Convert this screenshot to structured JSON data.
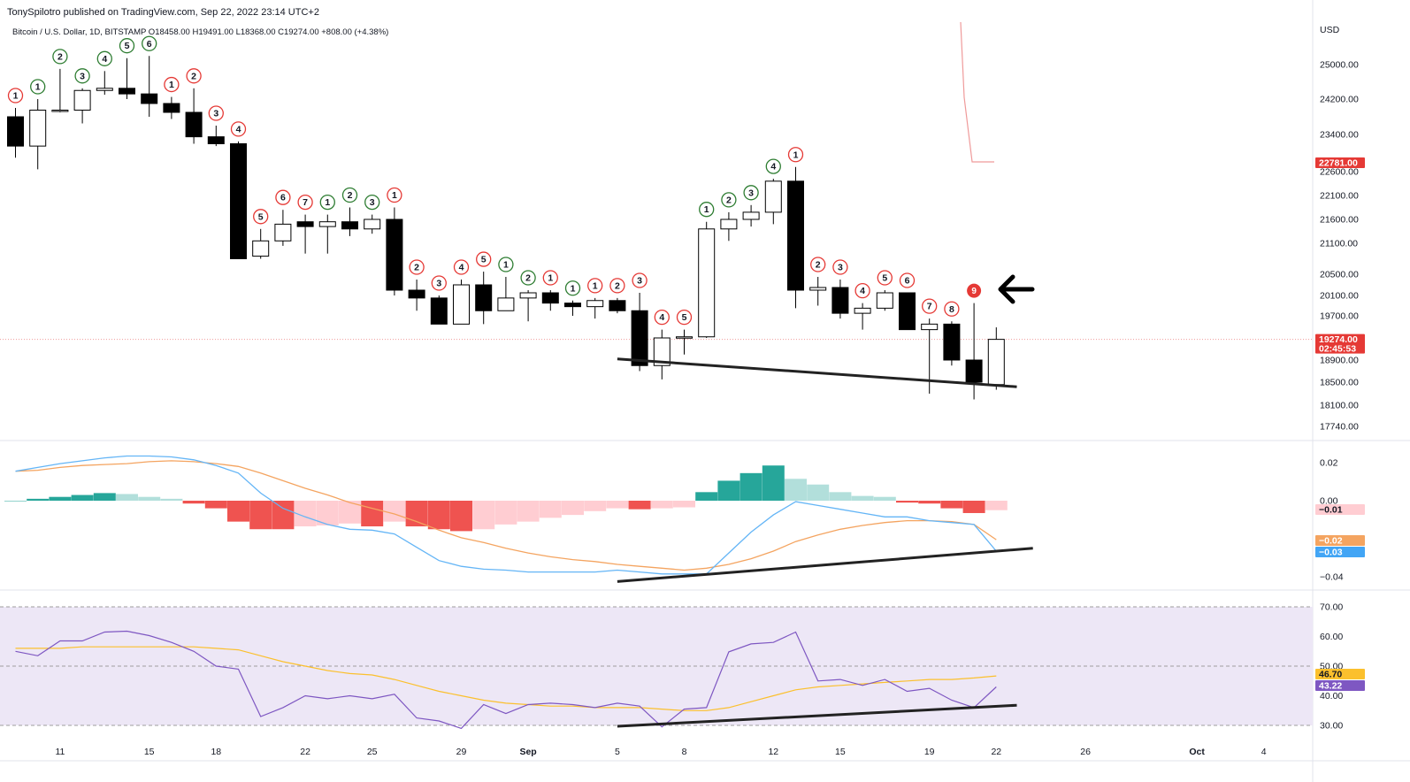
{
  "header": {
    "publisher": "TonySpilotro published on TradingView.com, Sep 22, 2022 23:14 UTC+2",
    "symbol_line": "Bitcoin / U.S. Dollar, 1D, BITSTAMP O18458.00  H19491.00  L18368.00  C19274.00  +808.00 (+4.38%)"
  },
  "colors": {
    "bull_body": "#ffffff",
    "bear_body": "#000000",
    "candle_outline": "#000000",
    "td_green": "#2e7d32",
    "td_red": "#e53935",
    "macd_line": "#64b5f6",
    "signal_line": "#f4a460",
    "hist_dark_green": "#26a69a",
    "hist_light_green": "#b2dfdb",
    "hist_dark_red": "#ef5350",
    "hist_light_red": "#ffcdd2",
    "rsi_line": "#7e57c2",
    "rsi_ma": "#fbc02d",
    "rsi_band": "#ede7f6",
    "trendline": "#222222"
  },
  "annotation": {
    "arrow": "left-arrow-icon"
  },
  "chart_data": [
    {
      "type": "candlestick",
      "title": "Bitcoin / U.S. Dollar, 1D, BITSTAMP",
      "axis_currency": "USD",
      "x_ticks": [
        "11",
        "15",
        "18",
        "22",
        "25",
        "29",
        "Sep",
        "5",
        "8",
        "12",
        "15",
        "19",
        "22",
        "26",
        "Oct",
        "4"
      ],
      "y_ticks": [
        "25000.00",
        "24200.00",
        "23400.00",
        "22600.00",
        "22100.00",
        "21600.00",
        "21100.00",
        "20500.00",
        "20100.00",
        "19700.00",
        "18900.00",
        "18500.00",
        "18100.00",
        "17740.00"
      ],
      "price_tags": [
        {
          "label": "22781.00",
          "color": "#e53935"
        },
        {
          "label": "19274.00",
          "sub": "02:45:53",
          "color": "#e53935"
        }
      ],
      "candles": [
        {
          "date": "Aug 09",
          "o": 23800,
          "h": 24000,
          "l": 22900,
          "c": 23150
        },
        {
          "date": "Aug 10",
          "o": 23150,
          "h": 24200,
          "l": 22650,
          "c": 23950
        },
        {
          "date": "Aug 11",
          "o": 23950,
          "h": 24900,
          "l": 23900,
          "c": 23950
        },
        {
          "date": "Aug 12",
          "o": 23950,
          "h": 24450,
          "l": 23650,
          "c": 24400
        },
        {
          "date": "Aug 13",
          "o": 24400,
          "h": 24850,
          "l": 24300,
          "c": 24450
        },
        {
          "date": "Aug 14",
          "o": 24450,
          "h": 25150,
          "l": 24200,
          "c": 24320
        },
        {
          "date": "Aug 15",
          "o": 24320,
          "h": 25200,
          "l": 23800,
          "c": 24100
        },
        {
          "date": "Aug 16",
          "o": 24100,
          "h": 24250,
          "l": 23750,
          "c": 23900
        },
        {
          "date": "Aug 17",
          "o": 23900,
          "h": 24450,
          "l": 23200,
          "c": 23350
        },
        {
          "date": "Aug 18",
          "o": 23350,
          "h": 23600,
          "l": 23150,
          "c": 23200
        },
        {
          "date": "Aug 19",
          "o": 23200,
          "h": 23250,
          "l": 20800,
          "c": 20800
        },
        {
          "date": "Aug 20",
          "o": 20850,
          "h": 21400,
          "l": 20800,
          "c": 21150
        },
        {
          "date": "Aug 21",
          "o": 21150,
          "h": 21800,
          "l": 21050,
          "c": 21500
        },
        {
          "date": "Aug 22",
          "o": 21550,
          "h": 21700,
          "l": 20900,
          "c": 21450
        },
        {
          "date": "Aug 23",
          "o": 21450,
          "h": 21700,
          "l": 20900,
          "c": 21550
        },
        {
          "date": "Aug 24",
          "o": 21550,
          "h": 21850,
          "l": 21250,
          "c": 21400
        },
        {
          "date": "Aug 25",
          "o": 21400,
          "h": 21700,
          "l": 21300,
          "c": 21600
        },
        {
          "date": "Aug 26",
          "o": 21600,
          "h": 21850,
          "l": 20100,
          "c": 20200
        },
        {
          "date": "Aug 27",
          "o": 20200,
          "h": 20400,
          "l": 19800,
          "c": 20050
        },
        {
          "date": "Aug 28",
          "o": 20050,
          "h": 20100,
          "l": 19550,
          "c": 19550
        },
        {
          "date": "Aug 29",
          "o": 19550,
          "h": 20400,
          "l": 19550,
          "c": 20300
        },
        {
          "date": "Aug 30",
          "o": 20300,
          "h": 20550,
          "l": 19550,
          "c": 19800
        },
        {
          "date": "Aug 31",
          "o": 19800,
          "h": 20450,
          "l": 19800,
          "c": 20050
        },
        {
          "date": "Sep 01",
          "o": 20050,
          "h": 20200,
          "l": 19600,
          "c": 20150
        },
        {
          "date": "Sep 02",
          "o": 20150,
          "h": 20200,
          "l": 19800,
          "c": 19950
        },
        {
          "date": "Sep 03",
          "o": 19950,
          "h": 20000,
          "l": 19700,
          "c": 19880
        },
        {
          "date": "Sep 04",
          "o": 19880,
          "h": 20050,
          "l": 19650,
          "c": 20000
        },
        {
          "date": "Sep 05",
          "o": 20000,
          "h": 20050,
          "l": 19750,
          "c": 19800
        },
        {
          "date": "Sep 06",
          "o": 19800,
          "h": 20150,
          "l": 18700,
          "c": 18800
        },
        {
          "date": "Sep 07",
          "o": 18800,
          "h": 19450,
          "l": 18550,
          "c": 19300
        },
        {
          "date": "Sep 08",
          "o": 19300,
          "h": 19450,
          "l": 19000,
          "c": 19320
        },
        {
          "date": "Sep 09",
          "o": 19320,
          "h": 21550,
          "l": 19300,
          "c": 21400
        },
        {
          "date": "Sep 10",
          "o": 21400,
          "h": 21750,
          "l": 21150,
          "c": 21600
        },
        {
          "date": "Sep 11",
          "o": 21600,
          "h": 21900,
          "l": 21450,
          "c": 21750
        },
        {
          "date": "Sep 12",
          "o": 21750,
          "h": 22450,
          "l": 21500,
          "c": 22400
        },
        {
          "date": "Sep 13",
          "o": 22400,
          "h": 22700,
          "l": 19850,
          "c": 20200
        },
        {
          "date": "Sep 14",
          "o": 20200,
          "h": 20450,
          "l": 19900,
          "c": 20250
        },
        {
          "date": "Sep 15",
          "o": 20250,
          "h": 20400,
          "l": 19650,
          "c": 19750
        },
        {
          "date": "Sep 16",
          "o": 19750,
          "h": 19950,
          "l": 19450,
          "c": 19850
        },
        {
          "date": "Sep 17",
          "o": 19850,
          "h": 20200,
          "l": 19800,
          "c": 20150
        },
        {
          "date": "Sep 18",
          "o": 20150,
          "h": 20150,
          "l": 19450,
          "c": 19450
        },
        {
          "date": "Sep 19",
          "o": 19450,
          "h": 19650,
          "l": 18300,
          "c": 19550
        },
        {
          "date": "Sep 20",
          "o": 19550,
          "h": 19600,
          "l": 18800,
          "c": 18900
        },
        {
          "date": "Sep 21",
          "o": 18900,
          "h": 19950,
          "l": 18200,
          "c": 18500
        },
        {
          "date": "Sep 22",
          "o": 18458,
          "h": 19491,
          "l": 18368,
          "c": 19274
        }
      ],
      "td_counts": [
        {
          "i": 0,
          "n": "1",
          "color": "red"
        },
        {
          "i": 1,
          "n": "1",
          "color": "green"
        },
        {
          "i": 2,
          "n": "2",
          "color": "green"
        },
        {
          "i": 3,
          "n": "3",
          "color": "green"
        },
        {
          "i": 4,
          "n": "4",
          "color": "green"
        },
        {
          "i": 5,
          "n": "5",
          "color": "green"
        },
        {
          "i": 6,
          "n": "6",
          "color": "green"
        },
        {
          "i": 7,
          "n": "1",
          "color": "red"
        },
        {
          "i": 8,
          "n": "2",
          "color": "red"
        },
        {
          "i": 9,
          "n": "3",
          "color": "red"
        },
        {
          "i": 10,
          "n": "4",
          "color": "red"
        },
        {
          "i": 11,
          "n": "5",
          "color": "red"
        },
        {
          "i": 12,
          "n": "6",
          "color": "red"
        },
        {
          "i": 13,
          "n": "7",
          "color": "red"
        },
        {
          "i": 14,
          "n": "1",
          "color": "green"
        },
        {
          "i": 15,
          "n": "2",
          "color": "green"
        },
        {
          "i": 16,
          "n": "3",
          "color": "green"
        },
        {
          "i": 17,
          "n": "1",
          "color": "red"
        },
        {
          "i": 18,
          "n": "2",
          "color": "red"
        },
        {
          "i": 19,
          "n": "3",
          "color": "red"
        },
        {
          "i": 20,
          "n": "4",
          "color": "red"
        },
        {
          "i": 21,
          "n": "5",
          "color": "red"
        },
        {
          "i": 22,
          "n": "1",
          "color": "green"
        },
        {
          "i": 23,
          "n": "2",
          "color": "green"
        },
        {
          "i": 24,
          "n": "1",
          "color": "red"
        },
        {
          "i": 25,
          "n": "1",
          "color": "green"
        },
        {
          "i": 26,
          "n": "1",
          "color": "red"
        },
        {
          "i": 27,
          "n": "2",
          "color": "red"
        },
        {
          "i": 28,
          "n": "3",
          "color": "red"
        },
        {
          "i": 29,
          "n": "4",
          "color": "red"
        },
        {
          "i": 30,
          "n": "5",
          "color": "red"
        },
        {
          "i": 31,
          "n": "1",
          "color": "green"
        },
        {
          "i": 32,
          "n": "2",
          "color": "green"
        },
        {
          "i": 33,
          "n": "3",
          "color": "green"
        },
        {
          "i": 34,
          "n": "4",
          "color": "green"
        },
        {
          "i": 35,
          "n": "1",
          "color": "red"
        },
        {
          "i": 36,
          "n": "2",
          "color": "red"
        },
        {
          "i": 37,
          "n": "3",
          "color": "red"
        },
        {
          "i": 38,
          "n": "4",
          "color": "red"
        },
        {
          "i": 39,
          "n": "5",
          "color": "red"
        },
        {
          "i": 40,
          "n": "6",
          "color": "red"
        },
        {
          "i": 41,
          "n": "7",
          "color": "red"
        },
        {
          "i": 42,
          "n": "8",
          "color": "red"
        },
        {
          "i": 43,
          "n": "9",
          "color": "red",
          "filled": true
        }
      ],
      "trendline": {
        "from": {
          "date": "Sep 05",
          "price": 18920
        },
        "to": {
          "date": "Sep 23",
          "price": 18420
        }
      }
    },
    {
      "type": "bar",
      "title": "MACD",
      "y_ticks": [
        "0.02",
        "0.00",
        "-0.04"
      ],
      "value_tags": [
        {
          "label": "-0.01",
          "color": "#e53935",
          "text": "#131722"
        },
        {
          "label": "-0.02",
          "color": "#f4a460",
          "text": "#ffffff"
        },
        {
          "label": "-0.03",
          "color": "#42a5f5",
          "text": "#ffffff"
        }
      ],
      "histogram": [
        0,
        0.001,
        0.002,
        0.003,
        0.004,
        0.0035,
        0.002,
        0.001,
        -0.0015,
        -0.004,
        -0.011,
        -0.015,
        -0.015,
        -0.0135,
        -0.013,
        -0.012,
        -0.0135,
        -0.011,
        -0.0135,
        -0.015,
        -0.016,
        -0.015,
        -0.0125,
        -0.011,
        -0.009,
        -0.0075,
        -0.0055,
        -0.004,
        -0.0045,
        -0.004,
        -0.0035,
        0.0045,
        0.0105,
        0.0145,
        0.0185,
        0.0115,
        0.0085,
        0.0045,
        0.0025,
        0.002,
        -0.001,
        -0.0015,
        -0.004,
        -0.0065,
        -0.005
      ],
      "macd": [
        0.0155,
        0.0175,
        0.0195,
        0.021,
        0.0225,
        0.0235,
        0.0235,
        0.023,
        0.0215,
        0.0185,
        0.0145,
        0.004,
        -0.004,
        -0.0085,
        -0.0125,
        -0.015,
        -0.0155,
        -0.0175,
        -0.0245,
        -0.0315,
        -0.0345,
        -0.036,
        -0.0365,
        -0.0375,
        -0.0375,
        -0.0375,
        -0.0375,
        -0.0365,
        -0.0375,
        -0.0385,
        -0.0385,
        -0.0385,
        -0.0275,
        -0.0165,
        -0.0075,
        -0.0005,
        -0.0025,
        -0.0045,
        -0.0065,
        -0.0085,
        -0.0085,
        -0.0105,
        -0.0115,
        -0.0125,
        -0.0265
      ],
      "signal": [
        0.0155,
        0.016,
        0.0175,
        0.0185,
        0.019,
        0.0195,
        0.0205,
        0.021,
        0.0205,
        0.0195,
        0.018,
        0.0145,
        0.0105,
        0.0065,
        0.003,
        -0.001,
        -0.004,
        -0.007,
        -0.011,
        -0.0155,
        -0.0195,
        -0.022,
        -0.025,
        -0.0275,
        -0.0295,
        -0.031,
        -0.032,
        -0.0335,
        -0.0345,
        -0.0355,
        -0.0365,
        -0.0355,
        -0.0335,
        -0.0305,
        -0.0265,
        -0.0215,
        -0.018,
        -0.015,
        -0.013,
        -0.0115,
        -0.0105,
        -0.0105,
        -0.011,
        -0.0125,
        -0.0205
      ],
      "trendline": {
        "from": {
          "date": "Sep 05",
          "value": -0.0425
        },
        "to": {
          "date": "Sep 24",
          "value": -0.025
        }
      }
    },
    {
      "type": "line",
      "title": "RSI",
      "y_ticks": [
        "70.00",
        "60.00",
        "50.00",
        "40.00",
        "30.00"
      ],
      "bands": {
        "upper": 70,
        "middle": 50,
        "lower": 30
      },
      "value_tags": [
        {
          "label": "46.70",
          "color": "#fbc02d",
          "text": "#131722"
        },
        {
          "label": "43.22",
          "color": "#7e57c2",
          "text": "#ffffff"
        }
      ],
      "rsi": [
        55,
        53.5,
        58.5,
        58.5,
        61.5,
        61.8,
        60.3,
        58,
        55,
        50,
        49,
        33,
        36,
        40,
        39,
        40,
        39,
        40.5,
        32.5,
        31.5,
        29,
        37,
        34,
        37,
        37.5,
        37,
        36,
        37.5,
        36.5,
        29.5,
        35.5,
        36,
        54.8,
        57.5,
        58,
        61.5,
        45,
        45.5,
        43.5,
        45.5,
        41.5,
        42.5,
        38.5,
        36,
        43
      ],
      "rsi_ma": [
        56,
        56,
        56,
        56.5,
        56.5,
        56.5,
        56.5,
        56.5,
        56.5,
        56,
        55.5,
        53.5,
        51.5,
        50,
        48.5,
        47.5,
        47,
        45.5,
        43.5,
        41.5,
        40,
        38.5,
        37.5,
        37,
        36.5,
        36.5,
        36,
        36,
        36,
        35.5,
        35,
        35,
        36,
        38,
        40,
        42,
        43,
        43.5,
        44,
        44.5,
        45,
        45.5,
        45.5,
        46,
        46.7
      ],
      "trendline": {
        "from": {
          "date": "Sep 05",
          "value": 29.7
        },
        "to": {
          "date": "Sep 23",
          "value": 36.8
        }
      }
    }
  ]
}
